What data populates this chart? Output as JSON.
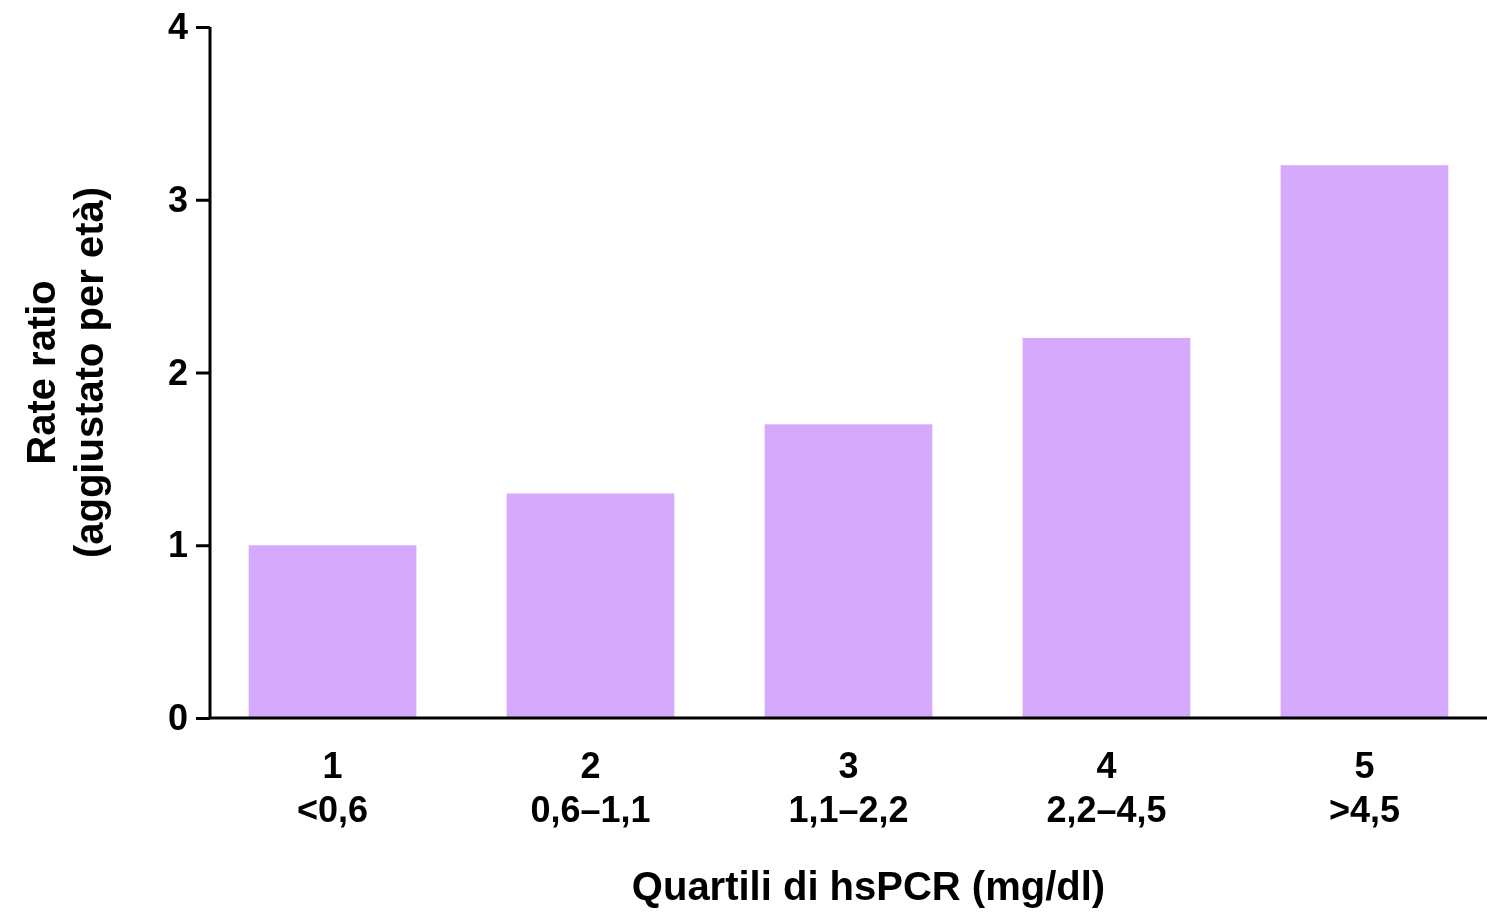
{
  "chart_data": {
    "type": "bar",
    "xlabel": "Quartili di hsPCR (mg/dl)",
    "ylabel": "Rate ratio\n(aggiustato per età)",
    "categories": [
      "1\n<0,6",
      "2\n0,6–1,1",
      "3\n1,1–2,2",
      "4\n2,2–4,5",
      "5\n>4,5"
    ],
    "values": [
      1.0,
      1.3,
      1.7,
      2.2,
      3.2
    ],
    "color": "#d5aafc",
    "ylim": [
      0,
      4
    ],
    "yticks": [
      0,
      1,
      2,
      3,
      4
    ],
    "grid": false
  }
}
